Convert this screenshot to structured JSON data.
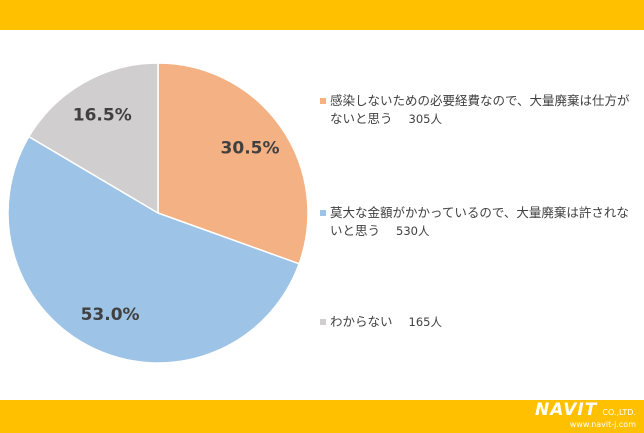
{
  "chart_data": {
    "type": "pie",
    "categories": [
      "感染しないための必要経費なので、大量廃棄は仕方がないと思う",
      "莫大な金額がかかっているので、大量廃棄は許されないと思う",
      "わからない"
    ],
    "count_labels": [
      "305人",
      "530人",
      "165人"
    ],
    "values": [
      30.5,
      53.0,
      16.5
    ],
    "value_labels": [
      "30.5%",
      "53.0%",
      "16.5%"
    ],
    "colors": [
      "#F4B183",
      "#9DC3E6",
      "#D0CECE"
    ]
  },
  "footer": {
    "logo": "NAVIT",
    "company": "CO.,LTD.",
    "url": "www.navit-j.com"
  }
}
